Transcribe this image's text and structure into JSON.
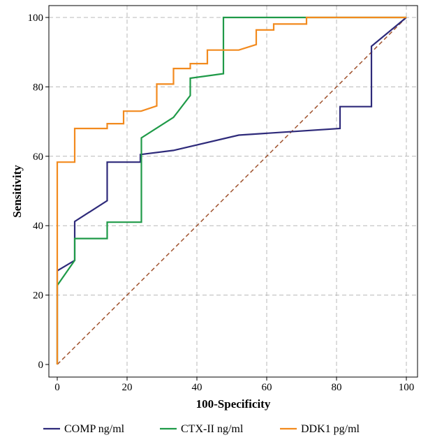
{
  "chart_data": {
    "type": "line",
    "xlabel": "100-Specificity",
    "ylabel": "Sensitivity",
    "xlim": [
      0,
      100
    ],
    "ylim": [
      0,
      100
    ],
    "xticks": [
      0,
      20,
      40,
      60,
      80,
      100
    ],
    "yticks": [
      0,
      20,
      40,
      60,
      80,
      100
    ],
    "grid": true,
    "legend_position": "bottom",
    "reference_line": {
      "x": [
        0,
        100
      ],
      "y": [
        0,
        100
      ],
      "color": "#a0522d",
      "style": "dashed"
    },
    "series": [
      {
        "name": "COMP ng/ml",
        "color": "#2e2a7a",
        "x": [
          0,
          0,
          5,
          5,
          14.3,
          14.3,
          23.8,
          23.8,
          33.3,
          52,
          81,
          81,
          90,
          90,
          100
        ],
        "y": [
          0,
          27,
          30,
          41.2,
          47.2,
          58.3,
          58.3,
          60.5,
          61.7,
          66.1,
          68,
          74.3,
          74.3,
          91.7,
          100
        ]
      },
      {
        "name": "CTX-II ng/ml",
        "color": "#1f9a48",
        "x": [
          0,
          0,
          5,
          5,
          14.3,
          14.3,
          24.1,
          24.1,
          33.3,
          38.1,
          38.1,
          47.6,
          47.6,
          71.4,
          100
        ],
        "y": [
          0,
          22.8,
          30,
          36.3,
          36.3,
          41,
          41,
          65.3,
          71.2,
          77.5,
          82.5,
          83.8,
          100,
          100,
          100
        ]
      },
      {
        "name": "DDK1 pg/ml",
        "color": "#f28a1e",
        "x": [
          0,
          0,
          5,
          5,
          14.3,
          14.3,
          19,
          19,
          24,
          28.5,
          28.5,
          33.3,
          33.3,
          38.1,
          38.1,
          43,
          43,
          52,
          57,
          57,
          62,
          62,
          71.4,
          71.4,
          100
        ],
        "y": [
          0,
          58.3,
          58.3,
          68,
          68,
          69.4,
          69.4,
          73,
          73,
          74.5,
          80.8,
          80.8,
          85.3,
          85.3,
          86.7,
          86.7,
          90.6,
          90.6,
          92.2,
          96.4,
          96.4,
          98.1,
          98.1,
          100,
          100
        ]
      }
    ]
  }
}
